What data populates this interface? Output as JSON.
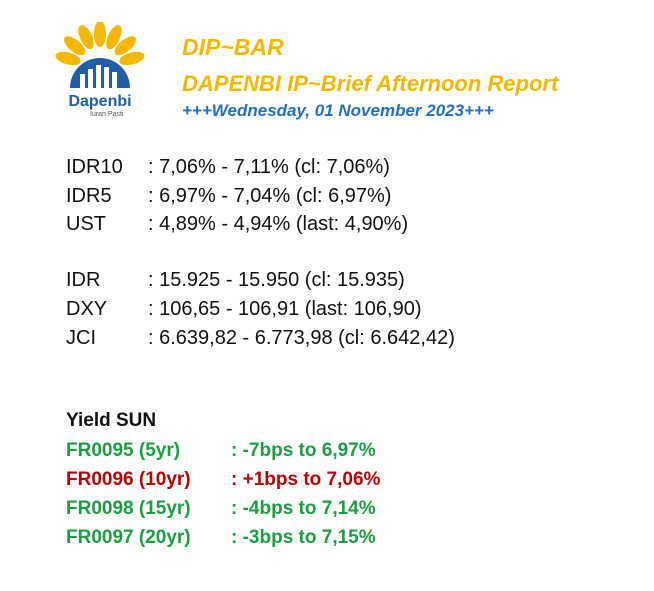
{
  "logo": {
    "icon": "sunflower-logo-icon",
    "word": "Dapenbi",
    "tagline": "Iuran Pasti",
    "colors": {
      "petal": "#f5b700",
      "bars": "#1f5fa8"
    }
  },
  "header": {
    "title": "DIP~BAR",
    "subtitle": "DAPENBI IP~Brief Afternoon Report",
    "date": "+++Wednesday, 01 November 2023+++"
  },
  "rates": [
    {
      "label": "IDR10",
      "value": ": 7,06% - 7,11% (cl: 7,06%)"
    },
    {
      "label": "IDR5",
      "value": ": 6,97% - 7,04% (cl: 6,97%)"
    },
    {
      "label": "UST",
      "value": ": 4,89% - 4,94% (last: 4,90%)"
    }
  ],
  "markets": [
    {
      "label": "IDR",
      "value": ":  15.925 - 15.950 (cl: 15.935)"
    },
    {
      "label": "DXY",
      "value": ": 106,65 - 106,91 (last: 106,90)"
    },
    {
      "label": "JCI",
      "value": ": 6.639,82 - 6.773,98 (cl: 6.642,42)"
    }
  ],
  "yield_sun": {
    "title": "Yield SUN",
    "items": [
      {
        "label": "FR0095 (5yr)",
        "value": ": -7bps to 6,97%",
        "color": "#1a9e3f"
      },
      {
        "label": "FR0096 (10yr)",
        "value": ": +1bps to 7,06%",
        "color": "#c00000"
      },
      {
        "label": "FR0098 (15yr)",
        "value": ": -4bps to 7,14%",
        "color": "#1a9e3f"
      },
      {
        "label": "FR0097 (20yr)",
        "value": ": -3bps to 7,15%",
        "color": "#1a9e3f"
      }
    ]
  }
}
